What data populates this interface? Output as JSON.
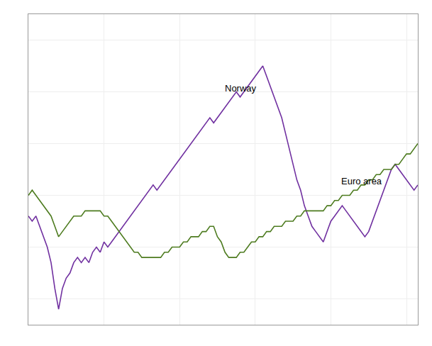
{
  "chart_data": {
    "type": "line",
    "series": [
      {
        "name": "Norway",
        "color": "#7030A0",
        "values": [
          96,
          95,
          96,
          94,
          92,
          90,
          87,
          82,
          78,
          82,
          84,
          85,
          87,
          88,
          87,
          88,
          87,
          89,
          90,
          89,
          91,
          90,
          91,
          92,
          93,
          94,
          95,
          96,
          97,
          98,
          99,
          100,
          101,
          102,
          101,
          102,
          103,
          104,
          105,
          106,
          107,
          108,
          109,
          110,
          111,
          112,
          113,
          114,
          115,
          114,
          115,
          116,
          117,
          118,
          119,
          120,
          119,
          120,
          121,
          122,
          123,
          124,
          125,
          123,
          121,
          119,
          117,
          115,
          112,
          109,
          106,
          103,
          101,
          98,
          96,
          94,
          93,
          92,
          91,
          93,
          95,
          96,
          97,
          98,
          97,
          96,
          95,
          94,
          93,
          92,
          93,
          95,
          97,
          99,
          101,
          103,
          105,
          106,
          105,
          104,
          103,
          102,
          101,
          102
        ]
      },
      {
        "name": "Euro area",
        "color": "#4D7B1F",
        "values": [
          100,
          101,
          100,
          99,
          98,
          97,
          96,
          94,
          92,
          93,
          94,
          95,
          96,
          96,
          96,
          97,
          97,
          97,
          97,
          97,
          96,
          96,
          95,
          94,
          93,
          92,
          91,
          90,
          89,
          89,
          88,
          88,
          88,
          88,
          88,
          88,
          89,
          89,
          90,
          90,
          90,
          91,
          91,
          92,
          92,
          92,
          93,
          93,
          94,
          94,
          92,
          91,
          89,
          88,
          88,
          88,
          89,
          89,
          90,
          91,
          91,
          92,
          92,
          93,
          93,
          94,
          94,
          94,
          95,
          95,
          95,
          96,
          96,
          97,
          97,
          97,
          97,
          97,
          97,
          98,
          98,
          99,
          99,
          100,
          100,
          100,
          101,
          101,
          102,
          102,
          103,
          103,
          104,
          104,
          105,
          105,
          105,
          106,
          106,
          107,
          108,
          108,
          109,
          110
        ]
      }
    ],
    "annotations": [
      {
        "text": "Norway"
      },
      {
        "text": "Euro area"
      }
    ],
    "xlim": [
      0,
      103
    ],
    "xticks": [
      0,
      20,
      40,
      60,
      80,
      100
    ],
    "ylim": [
      75,
      135
    ],
    "yticks": [
      80,
      90,
      100,
      110,
      120,
      130
    ],
    "grid": true,
    "tick_labels": false
  }
}
